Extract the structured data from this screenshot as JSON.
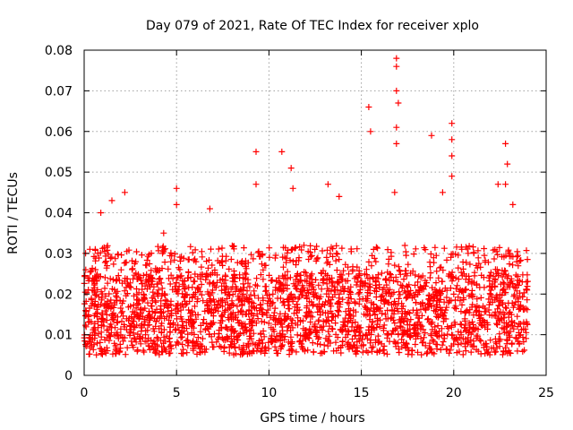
{
  "chart_data": {
    "type": "scatter",
    "title": "Day 079 of 2021, Rate Of TEC Index for receiver xplo",
    "xlabel": "GPS time / hours",
    "ylabel": "ROTI / TECUs",
    "xlim": [
      0,
      25
    ],
    "ylim": [
      0,
      0.08
    ],
    "x_ticks": [
      "0",
      "5",
      "10",
      "15",
      "20",
      "25"
    ],
    "y_ticks": [
      "0",
      "0.01",
      "0.02",
      "0.03",
      "0.04",
      "0.05",
      "0.06",
      "0.07",
      "0.08"
    ],
    "grid": true,
    "marker": "+",
    "series_color": "#ff0000",
    "baseline_band": {
      "x_range": [
        0,
        24
      ],
      "min": 0.005,
      "typical_low": 0.008,
      "typical_high": 0.025,
      "max_common": 0.032
    },
    "notable_points": [
      {
        "x": 0.9,
        "y": 0.04
      },
      {
        "x": 1.5,
        "y": 0.043
      },
      {
        "x": 2.2,
        "y": 0.045
      },
      {
        "x": 4.3,
        "y": 0.035
      },
      {
        "x": 5.0,
        "y": 0.046
      },
      {
        "x": 5.0,
        "y": 0.042
      },
      {
        "x": 6.8,
        "y": 0.041
      },
      {
        "x": 9.3,
        "y": 0.055
      },
      {
        "x": 9.3,
        "y": 0.047
      },
      {
        "x": 10.7,
        "y": 0.055
      },
      {
        "x": 11.2,
        "y": 0.051
      },
      {
        "x": 11.3,
        "y": 0.046
      },
      {
        "x": 13.2,
        "y": 0.047
      },
      {
        "x": 13.8,
        "y": 0.044
      },
      {
        "x": 15.4,
        "y": 0.066
      },
      {
        "x": 15.5,
        "y": 0.06
      },
      {
        "x": 16.9,
        "y": 0.078
      },
      {
        "x": 16.9,
        "y": 0.076
      },
      {
        "x": 16.9,
        "y": 0.07
      },
      {
        "x": 17.0,
        "y": 0.067
      },
      {
        "x": 16.9,
        "y": 0.061
      },
      {
        "x": 16.9,
        "y": 0.057
      },
      {
        "x": 16.8,
        "y": 0.045
      },
      {
        "x": 18.8,
        "y": 0.059
      },
      {
        "x": 19.9,
        "y": 0.062
      },
      {
        "x": 19.9,
        "y": 0.058
      },
      {
        "x": 19.9,
        "y": 0.054
      },
      {
        "x": 19.9,
        "y": 0.049
      },
      {
        "x": 19.4,
        "y": 0.045
      },
      {
        "x": 22.8,
        "y": 0.057
      },
      {
        "x": 22.9,
        "y": 0.052
      },
      {
        "x": 22.8,
        "y": 0.047
      },
      {
        "x": 22.4,
        "y": 0.047
      },
      {
        "x": 23.2,
        "y": 0.042
      }
    ]
  }
}
